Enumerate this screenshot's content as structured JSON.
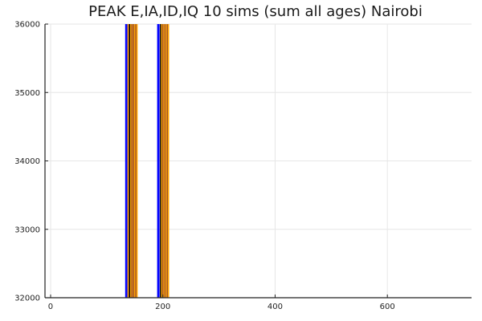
{
  "chart_data": {
    "type": "line",
    "title": "PEAK E,IA,ID,IQ 10 sims (sum all ages) Nairobi",
    "xlabel": "",
    "ylabel": "",
    "xlim": [
      -10,
      750
    ],
    "ylim": [
      32000,
      36000
    ],
    "xticks": [
      0,
      200,
      400,
      600
    ],
    "xtick_labels": [
      "0",
      "200",
      "400",
      "600"
    ],
    "yticks": [
      32000,
      33000,
      34000,
      35000,
      36000
    ],
    "ytick_labels": [
      "32000",
      "33000",
      "34000",
      "35000",
      "36000"
    ],
    "grid": true,
    "legend": "none",
    "series_colors": [
      "#0000ff",
      "#ffa500",
      "#a0522d",
      "#000000"
    ],
    "peak_bands": [
      {
        "lines": [
          {
            "x": 134,
            "color": "#0000ff"
          },
          {
            "x": 136,
            "color": "#0000ff"
          },
          {
            "x": 138,
            "color": "#ffa500"
          },
          {
            "x": 140,
            "color": "#a0522d"
          },
          {
            "x": 141,
            "color": "#000000"
          },
          {
            "x": 143,
            "color": "#ffa500"
          },
          {
            "x": 145,
            "color": "#a0522d"
          },
          {
            "x": 147,
            "color": "#ffa500"
          },
          {
            "x": 148,
            "color": "#a0522d"
          },
          {
            "x": 150,
            "color": "#ffa500"
          },
          {
            "x": 152,
            "color": "#a0522d"
          },
          {
            "x": 154,
            "color": "#ffa500"
          }
        ]
      },
      {
        "lines": [
          {
            "x": 191,
            "color": "#0000ff"
          },
          {
            "x": 193,
            "color": "#0000ff"
          },
          {
            "x": 196,
            "color": "#000000"
          },
          {
            "x": 198,
            "color": "#ffa500"
          },
          {
            "x": 200,
            "color": "#a0522d"
          },
          {
            "x": 202,
            "color": "#ffa500"
          },
          {
            "x": 204,
            "color": "#a0522d"
          },
          {
            "x": 206,
            "color": "#ffa500"
          },
          {
            "x": 208,
            "color": "#a0522d"
          },
          {
            "x": 210,
            "color": "#ffa500"
          }
        ]
      }
    ]
  }
}
